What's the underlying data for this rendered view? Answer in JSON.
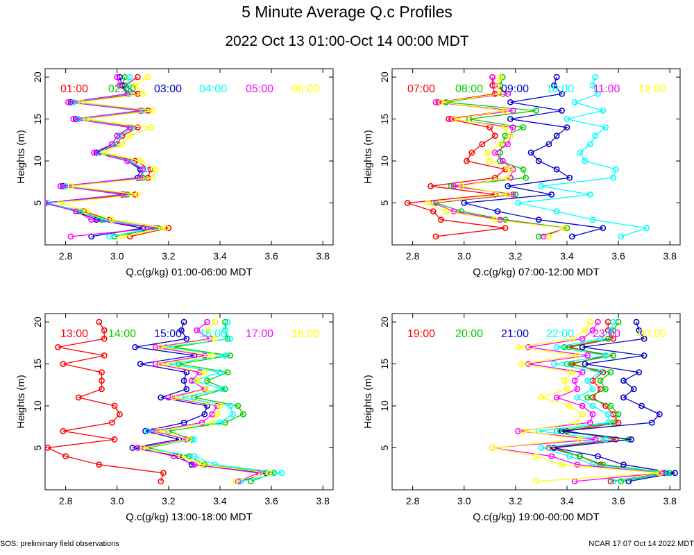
{
  "title": "5 Minute Average Q.c Profiles",
  "subtitle": "2022 Oct 13 01:00-Oct 14 00:00 MDT",
  "footer_left": "SOS: preliminary field observations",
  "footer_right": "NCAR 17:07 Oct 14 2022 MDT",
  "ylabel": "Heights (m)",
  "colors": [
    "#ff0000",
    "#00cc00",
    "#0000cc",
    "#00ffff",
    "#ff00ff",
    "#ffff00"
  ],
  "chart_data": [
    {
      "type": "line",
      "xlabel": "Q.c(g/kg) 01:00-06:00 MDT",
      "ylabel": "Heights (m)",
      "xlim": [
        2.72,
        3.84
      ],
      "ylim": [
        0,
        21
      ],
      "xticks": [
        2.8,
        3.0,
        3.2,
        3.4,
        3.6,
        3.8
      ],
      "xtick_labels": [
        "2.8",
        "3.0",
        "3.2",
        "3.4",
        "3.6",
        "3.8"
      ],
      "yticks": [
        5,
        10,
        15,
        20
      ],
      "ytick_labels": [
        "5",
        "10",
        "15",
        "20"
      ],
      "heights": [
        1,
        2,
        3,
        4,
        5,
        6,
        7,
        8,
        9,
        10,
        11,
        12,
        13,
        14,
        15,
        16,
        17,
        18,
        19,
        20
      ],
      "series": [
        {
          "name": "01:00",
          "values": [
            3.05,
            3.2,
            2.97,
            2.87,
            2.72,
            3.07,
            2.8,
            3.12,
            3.13,
            3.07,
            2.93,
            3.0,
            3.02,
            3.08,
            2.85,
            3.12,
            2.83,
            3.08,
            3.03,
            3.08
          ]
        },
        {
          "name": "02:00",
          "values": [
            2.99,
            3.16,
            2.94,
            2.85,
            2.71,
            3.04,
            2.78,
            3.1,
            3.1,
            3.05,
            2.92,
            2.99,
            3.01,
            3.06,
            2.84,
            3.1,
            2.82,
            3.05,
            3.02,
            3.03
          ]
        },
        {
          "name": "03:00",
          "values": [
            2.9,
            3.1,
            2.92,
            2.84,
            2.72,
            3.02,
            2.79,
            3.08,
            3.09,
            3.04,
            2.92,
            2.98,
            3.0,
            3.05,
            2.84,
            3.09,
            2.82,
            3.04,
            3.02,
            3.01
          ]
        },
        {
          "name": "04:00",
          "values": [
            2.97,
            3.14,
            2.95,
            2.86,
            2.73,
            3.03,
            2.8,
            3.09,
            3.11,
            3.05,
            2.93,
            2.99,
            3.01,
            3.06,
            2.85,
            3.1,
            2.83,
            3.05,
            3.04,
            3.05
          ]
        },
        {
          "name": "05:00",
          "values": [
            2.82,
            3.15,
            2.9,
            2.84,
            2.72,
            3.03,
            2.78,
            3.09,
            3.1,
            3.04,
            2.91,
            2.98,
            3.0,
            3.05,
            2.83,
            3.09,
            2.81,
            3.04,
            3.01,
            3.0
          ]
        },
        {
          "name": "06:00",
          "values": [
            3.02,
            3.19,
            2.98,
            2.88,
            2.78,
            3.08,
            2.82,
            3.14,
            3.15,
            3.09,
            2.95,
            3.02,
            3.05,
            3.13,
            2.88,
            3.14,
            2.86,
            3.1,
            3.07,
            3.12
          ]
        }
      ]
    },
    {
      "type": "line",
      "xlabel": "Q.c(g/kg) 07:00-12:00 MDT",
      "ylabel": "Heights (m)",
      "xlim": [
        2.72,
        3.84
      ],
      "ylim": [
        0,
        21
      ],
      "xticks": [
        2.8,
        3.0,
        3.2,
        3.4,
        3.6,
        3.8
      ],
      "xtick_labels": [
        "2.8",
        "3.0",
        "3.2",
        "3.4",
        "3.6",
        "3.8"
      ],
      "yticks": [
        5,
        10,
        15,
        20
      ],
      "ytick_labels": [
        "5",
        "10",
        "15",
        "20"
      ],
      "heights": [
        1,
        2,
        3,
        4,
        5,
        6,
        7,
        8,
        9,
        10,
        11,
        12,
        13,
        14,
        15,
        16,
        17,
        18,
        19,
        20
      ],
      "series": [
        {
          "name": "07:00",
          "values": [
            2.89,
            3.16,
            2.91,
            2.88,
            2.78,
            3.12,
            2.87,
            3.12,
            3.16,
            3.01,
            3.03,
            3.07,
            3.12,
            3.1,
            2.94,
            3.16,
            2.9,
            3.12,
            3.11,
            3.11
          ]
        },
        {
          "name": "08:00",
          "values": [
            3.29,
            3.4,
            3.16,
            2.99,
            2.89,
            3.2,
            2.95,
            3.24,
            3.23,
            3.14,
            3.14,
            3.15,
            3.16,
            3.23,
            3.02,
            3.28,
            2.93,
            3.15,
            3.14,
            3.15
          ]
        },
        {
          "name": "09:00",
          "values": [
            3.42,
            3.54,
            3.29,
            3.13,
            3.0,
            3.34,
            3.17,
            3.41,
            3.36,
            3.29,
            3.26,
            3.33,
            3.36,
            3.4,
            3.18,
            3.38,
            3.18,
            3.38,
            3.35,
            3.36
          ]
        },
        {
          "name": "10:00",
          "values": [
            3.61,
            3.71,
            3.5,
            3.36,
            3.21,
            3.49,
            3.3,
            3.58,
            3.59,
            3.47,
            3.45,
            3.49,
            3.51,
            3.55,
            3.4,
            3.54,
            3.43,
            3.52,
            3.5,
            3.51
          ]
        },
        {
          "name": "11:00",
          "values": [
            3.31,
            3.39,
            3.14,
            2.96,
            2.88,
            3.19,
            2.96,
            3.18,
            3.19,
            3.15,
            3.12,
            3.17,
            3.18,
            3.19,
            2.95,
            3.19,
            2.89,
            3.17,
            3.12,
            3.11
          ]
        },
        {
          "name": "12:00",
          "values": [
            3.33,
            3.39,
            3.12,
            2.93,
            2.86,
            3.17,
            2.99,
            3.17,
            3.18,
            3.1,
            3.09,
            3.14,
            3.18,
            3.16,
            2.96,
            3.16,
            2.91,
            3.14,
            3.13,
            3.14
          ]
        }
      ]
    },
    {
      "type": "line",
      "xlabel": "Q.c(g/kg) 13:00-18:00 MDT",
      "ylabel": "Heights (m)",
      "xlim": [
        2.72,
        3.84
      ],
      "ylim": [
        0,
        21
      ],
      "xticks": [
        2.8,
        3.0,
        3.2,
        3.4,
        3.6,
        3.8
      ],
      "xtick_labels": [
        "2.8",
        "3.0",
        "3.2",
        "3.4",
        "3.6",
        "3.8"
      ],
      "yticks": [
        5,
        10,
        15,
        20
      ],
      "ytick_labels": [
        "5",
        "10",
        "15",
        "20"
      ],
      "heights": [
        1,
        2,
        3,
        4,
        5,
        6,
        7,
        8,
        9,
        10,
        11,
        12,
        13,
        14,
        15,
        16,
        17,
        18,
        19,
        20
      ],
      "series": [
        {
          "name": "13:00",
          "values": [
            3.17,
            3.18,
            2.93,
            2.8,
            2.73,
            2.99,
            2.79,
            2.98,
            3.01,
            2.99,
            2.85,
            2.94,
            2.94,
            2.94,
            2.79,
            2.95,
            2.77,
            2.95,
            2.95,
            2.93
          ]
        },
        {
          "name": "14:00",
          "values": [
            3.52,
            3.61,
            3.34,
            3.28,
            3.12,
            3.29,
            3.2,
            3.42,
            3.49,
            3.47,
            3.3,
            3.42,
            3.35,
            3.43,
            3.24,
            3.44,
            3.22,
            3.43,
            3.42,
            3.42
          ]
        },
        {
          "name": "15:00",
          "values": [
            3.48,
            3.58,
            3.29,
            3.24,
            3.06,
            3.24,
            3.11,
            3.26,
            3.34,
            3.35,
            3.17,
            3.27,
            3.26,
            3.27,
            3.09,
            3.3,
            3.07,
            3.27,
            3.25,
            3.26
          ]
        },
        {
          "name": "16:00",
          "values": [
            3.48,
            3.64,
            3.38,
            3.3,
            3.1,
            3.3,
            3.12,
            3.4,
            3.45,
            3.44,
            3.25,
            3.41,
            3.3,
            3.4,
            3.2,
            3.42,
            3.19,
            3.44,
            3.42,
            3.43
          ]
        },
        {
          "name": "17:00",
          "values": [
            3.47,
            3.55,
            3.3,
            3.22,
            3.08,
            3.27,
            3.14,
            3.33,
            3.37,
            3.39,
            3.2,
            3.34,
            3.29,
            3.32,
            3.15,
            3.34,
            3.15,
            3.36,
            3.31,
            3.35
          ]
        },
        {
          "name": "18:00",
          "values": [
            3.46,
            3.59,
            3.33,
            3.25,
            3.1,
            3.28,
            3.16,
            3.37,
            3.39,
            3.4,
            3.22,
            3.35,
            3.31,
            3.34,
            3.17,
            3.37,
            3.17,
            3.38,
            3.35,
            3.38
          ]
        }
      ]
    },
    {
      "type": "line",
      "xlabel": "Q.c(g/kg) 19:00-00:00 MDT",
      "ylabel": "Heights (m)",
      "xlim": [
        2.72,
        3.84
      ],
      "ylim": [
        0,
        21
      ],
      "xticks": [
        2.8,
        3.0,
        3.2,
        3.4,
        3.6,
        3.8
      ],
      "xtick_labels": [
        "2.8",
        "3.0",
        "3.2",
        "3.4",
        "3.6",
        "3.8"
      ],
      "yticks": [
        5,
        10,
        15,
        20
      ],
      "ytick_labels": [
        "5",
        "10",
        "15",
        "20"
      ],
      "heights": [
        1,
        2,
        3,
        4,
        5,
        6,
        7,
        8,
        9,
        10,
        11,
        12,
        13,
        14,
        15,
        16,
        17,
        18,
        19,
        20
      ],
      "series": [
        {
          "name": "19:00",
          "values": [
            3.57,
            3.78,
            3.53,
            3.45,
            3.33,
            3.59,
            3.4,
            3.6,
            3.58,
            3.55,
            3.5,
            3.53,
            3.5,
            3.54,
            3.42,
            3.55,
            3.41,
            3.58,
            3.56,
            3.56
          ]
        },
        {
          "name": "20:00",
          "values": [
            3.61,
            3.8,
            3.54,
            3.45,
            3.35,
            3.64,
            3.36,
            3.58,
            3.6,
            3.57,
            3.48,
            3.55,
            3.53,
            3.57,
            3.4,
            3.58,
            3.39,
            3.56,
            3.58,
            3.6
          ]
        },
        {
          "name": "21:00",
          "values": [
            3.64,
            3.82,
            3.62,
            3.52,
            3.35,
            3.65,
            3.38,
            3.73,
            3.76,
            3.69,
            3.62,
            3.66,
            3.62,
            3.68,
            3.47,
            3.7,
            3.46,
            3.7,
            3.68,
            3.67
          ]
        },
        {
          "name": "22:00",
          "values": [
            3.58,
            3.79,
            3.5,
            3.41,
            3.3,
            3.55,
            3.29,
            3.56,
            3.56,
            3.5,
            3.44,
            3.5,
            3.48,
            3.53,
            3.35,
            3.55,
            3.36,
            3.53,
            3.57,
            3.58
          ]
        },
        {
          "name": "23:00",
          "values": [
            3.43,
            3.77,
            3.44,
            3.34,
            3.11,
            3.51,
            3.21,
            3.49,
            3.5,
            3.46,
            3.36,
            3.44,
            3.43,
            3.46,
            3.25,
            3.48,
            3.25,
            3.46,
            3.5,
            3.52
          ]
        },
        {
          "name": "00:00",
          "values": [
            3.28,
            3.76,
            3.38,
            3.28,
            3.11,
            3.45,
            3.23,
            3.44,
            3.46,
            3.41,
            3.3,
            3.4,
            3.39,
            3.42,
            3.22,
            3.44,
            3.21,
            3.42,
            3.47,
            3.49
          ]
        }
      ]
    }
  ]
}
